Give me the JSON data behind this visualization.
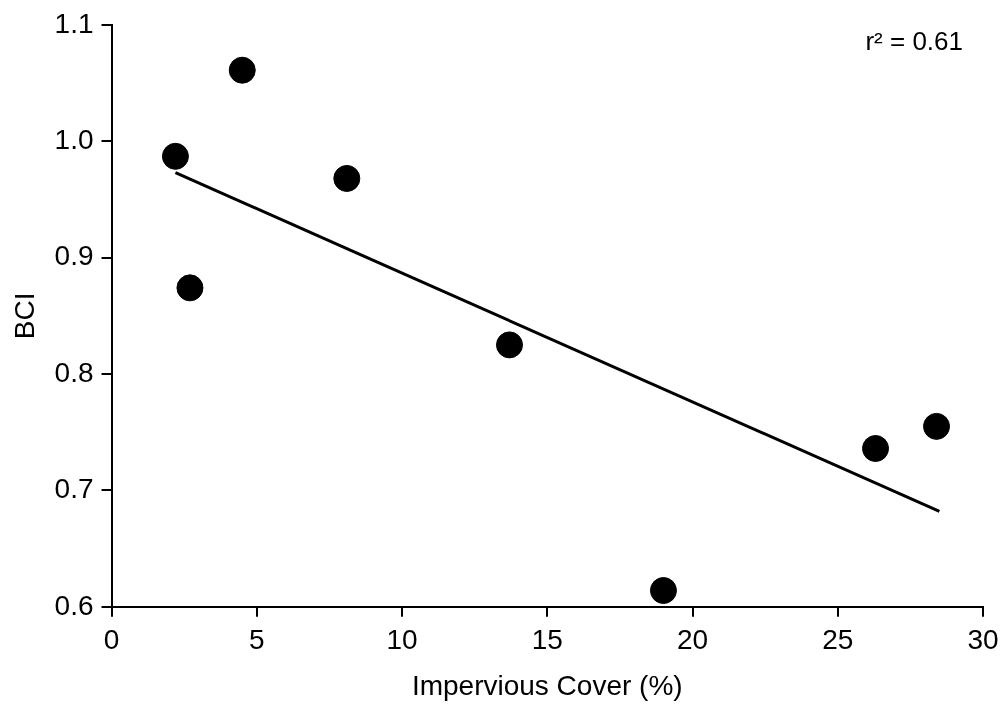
{
  "chart_data": {
    "type": "scatter",
    "xlabel": "Impervious Cover (%)",
    "ylabel": "BCI",
    "annotations": [
      "r² = 0.61"
    ],
    "xlim": [
      0,
      30
    ],
    "xticks": [
      0,
      5,
      10,
      15,
      20,
      25,
      30
    ],
    "ylim": [
      0.6,
      1.1
    ],
    "yticks": [
      0.6,
      0.7,
      0.8,
      0.9,
      {
        "value": 1.0,
        "label": "1.0"
      },
      1.1
    ],
    "grid": false,
    "legend": false,
    "series": [
      {
        "marker": "circle",
        "color": "#000000",
        "x": [
          2.2,
          4.5,
          2.7,
          8.1,
          13.7,
          19.0,
          26.3,
          28.4
        ],
        "values": [
          0.987,
          1.061,
          0.874,
          0.968,
          0.825,
          0.614,
          0.736,
          0.755
        ]
      },
      {
        "type": "line",
        "marker": "none",
        "color": "#000000",
        "x": [
          2.2,
          28.5
        ],
        "values": [
          0.973,
          0.682
        ]
      }
    ]
  }
}
